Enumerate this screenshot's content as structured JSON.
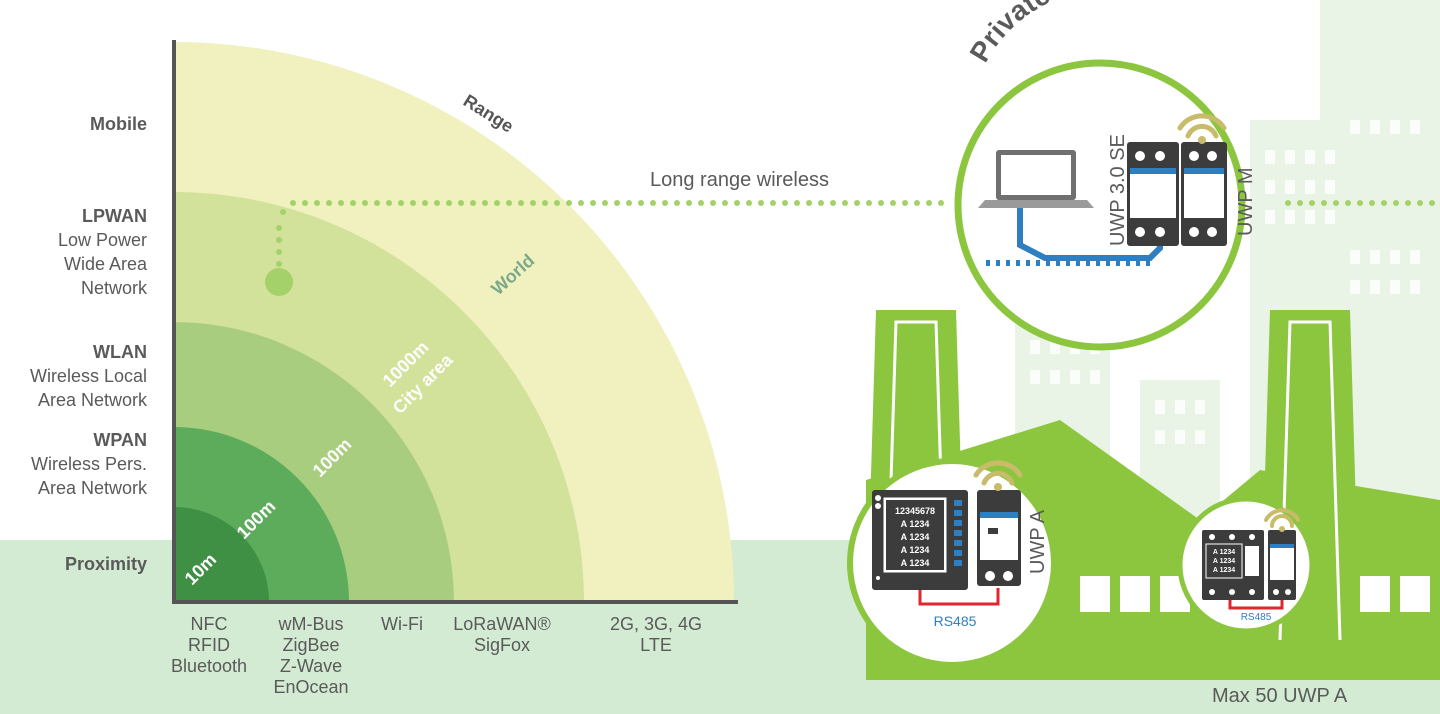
{
  "categories": [
    {
      "title": "Mobile",
      "sub": []
    },
    {
      "title": "LPWAN",
      "sub": [
        "Low Power",
        "Wide Area",
        "Network"
      ]
    },
    {
      "title": "WLAN",
      "sub": [
        "Wireless Local",
        "Area Network"
      ]
    },
    {
      "title": "WPAN",
      "sub": [
        "Wireless Pers.",
        "Area Network"
      ]
    },
    {
      "title": "Proximity",
      "sub": []
    }
  ],
  "technologies": [
    [
      "NFC",
      "RFID",
      "Bluetooth"
    ],
    [
      "wM-Bus",
      "ZigBee",
      "Z-Wave",
      "EnOcean"
    ],
    [
      "Wi-Fi"
    ],
    [
      "LoRaWAN®",
      "SigFox"
    ],
    [
      "2G, 3G, 4G",
      "LTE"
    ]
  ],
  "arc_labels": {
    "range": "Range",
    "world": "World",
    "city_1000m": "1000m",
    "city_area": "City area",
    "m100_outer": "100m",
    "m100_inner": "100m",
    "m10": "10m"
  },
  "long_range_label": "Long range wireless",
  "private_network_title": "Private network",
  "devices": {
    "uwp30se": "UWP 3.0 SE",
    "uwpm": "UWP M",
    "uwpa": "UWP A",
    "meter_display": [
      "12345678",
      "A 1234",
      "A 1234",
      "A 1234",
      "A 1234"
    ],
    "small_meter_display": [
      "A 1234",
      "A 1234",
      "A 1234"
    ],
    "rs485_1": "RS485",
    "rs485_2": "RS485"
  },
  "max_label": "Max 50 UWP A",
  "colors": {
    "ground": "#d3ebd3",
    "arc_range": "#f0f1bf",
    "arc_world": "#d2e29a",
    "arc_city": "#a9cd7f",
    "arc_100m": "#83be6e",
    "arc_100m_inner": "#5cac5c",
    "arc_10m": "#3f8f45",
    "factory": "#8cc63f",
    "city": "#eaf4e6",
    "axis": "#555555",
    "dots": "#a5d16b",
    "blue": "#2d7fc1",
    "cable": "#e0262e",
    "text": "#5a5a5a"
  }
}
